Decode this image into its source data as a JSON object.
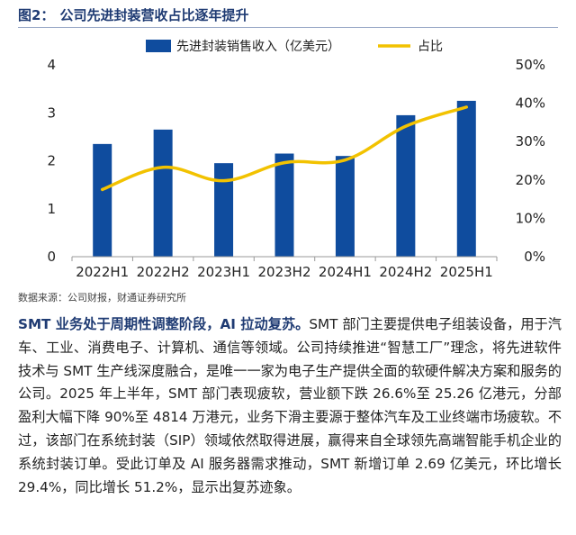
{
  "figure": {
    "number": "图2：",
    "title": "公司先进封装营收占比逐年提升",
    "source": "数据来源：公司财报，财通证券研究所"
  },
  "chart_data": {
    "type": "bar",
    "categories": [
      "2022H1",
      "2022H2",
      "2023H1",
      "2023H2",
      "2024H1",
      "2024H2",
      "2025H1"
    ],
    "series": [
      {
        "name": "先进封装销售收入（亿美元）",
        "type": "bar",
        "axis": "left",
        "color": "#0f4c9e",
        "values": [
          2.35,
          2.65,
          1.95,
          2.15,
          2.1,
          2.95,
          3.25
        ]
      },
      {
        "name": "占比",
        "type": "line",
        "axis": "right",
        "color": "#f2c200",
        "values": [
          17.5,
          23.3,
          19.8,
          24.5,
          25.2,
          34.0,
          39.0
        ]
      }
    ],
    "left_axis": {
      "ylim": [
        0,
        4
      ],
      "ticks": [
        "0",
        "1",
        "2",
        "3",
        "4"
      ]
    },
    "right_axis": {
      "ylim": [
        0,
        50
      ],
      "ticks": [
        "0%",
        "10%",
        "20%",
        "30%",
        "40%",
        "50%"
      ]
    },
    "legend_position": "top"
  },
  "paragraph": {
    "lead": "SMT 业务处于周期性调整阶段，AI 拉动复苏。",
    "text": "SMT 部门主要提供电子组装设备，用于汽车、工业、消费电子、计算机、通信等领域。公司持续推进“智慧工厂”理念，将先进软件技术与 SMT 生产线深度融合，是唯一一家为电子生产提供全面的软硬件解决方案和服务的公司。2025 年上半年，SMT 部门表现疲软，营业额下跌 26.6%至 25.26 亿港元，分部盈利大幅下降 90%至 4814 万港元，业务下滑主要源于整体汽车及工业终端市场疲软。不过，该部门在系统封装（SIP）领域依然取得进展，赢得来自全球领先高端智能手机企业的系统封装订单。受此订单及 AI 服务器需求推动，SMT 新增订单 2.69 亿美元，环比增长 29.4%，同比增长 51.2%，显示出复苏迹象。"
  }
}
